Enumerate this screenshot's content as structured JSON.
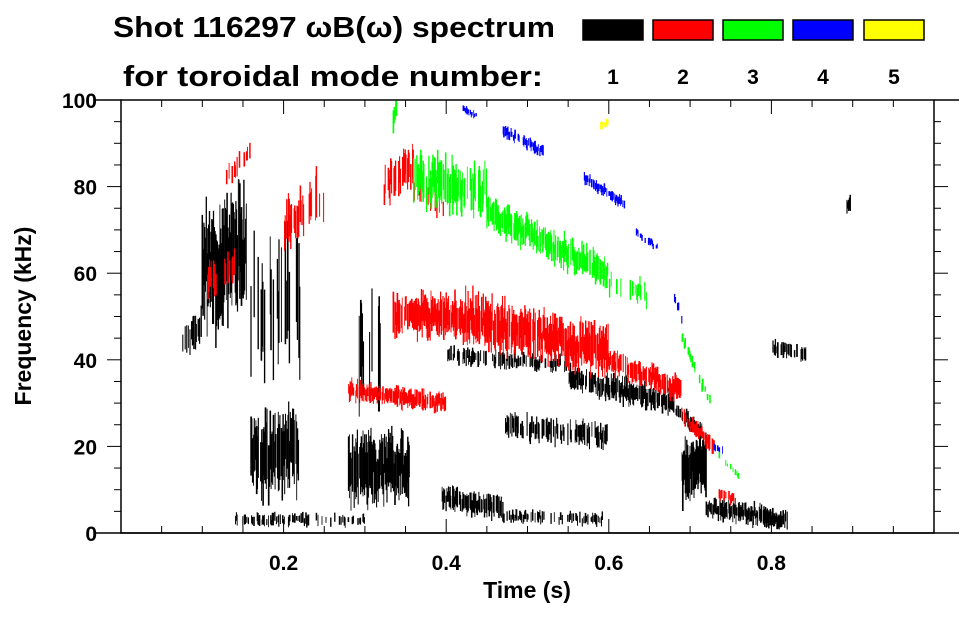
{
  "chart_data": {
    "type": "heatmap",
    "title": "Shot 116297 ωB(ω) spectrum",
    "legend_caption": "for toroidal mode number:",
    "xlabel": "Time (s)",
    "ylabel": "Frequency (kHz)",
    "xlim": [
      0,
      1.0
    ],
    "ylim": [
      0,
      100
    ],
    "xticks": [
      0.2,
      0.4,
      0.6,
      0.8
    ],
    "xtick_labels": [
      "0.2",
      "0.4",
      "0.6",
      "0.8"
    ],
    "yticks": [
      0,
      20,
      40,
      60,
      80,
      100
    ],
    "ytick_labels": [
      "0",
      "20",
      "40",
      "60",
      "80",
      "100"
    ],
    "legend_placement": "top-right",
    "band_format": "[t_start_s, t_end_s, f_center_start_kHz, f_center_end_kHz, f_halfwidth_kHz, density]",
    "series": [
      {
        "name": "1",
        "color": "#000000",
        "bands": [
          [
            0.075,
            0.1,
            44,
            48,
            4,
            0.5
          ],
          [
            0.1,
            0.155,
            60,
            66,
            15,
            1.0
          ],
          [
            0.155,
            0.22,
            52,
            55,
            16,
            0.35
          ],
          [
            0.16,
            0.22,
            18,
            18,
            10,
            0.9
          ],
          [
            0.28,
            0.355,
            15,
            15,
            8,
            0.95
          ],
          [
            0.29,
            0.32,
            42,
            42,
            14,
            0.3
          ],
          [
            0.395,
            0.47,
            8,
            6,
            3,
            0.8
          ],
          [
            0.47,
            0.6,
            4,
            3,
            1.5,
            0.5
          ],
          [
            0.4,
            0.55,
            41,
            39,
            2,
            0.5
          ],
          [
            0.55,
            0.68,
            36,
            30,
            3,
            0.8
          ],
          [
            0.68,
            0.72,
            29,
            22,
            2,
            0.7
          ],
          [
            0.47,
            0.6,
            25,
            22,
            3,
            0.6
          ],
          [
            0.69,
            0.72,
            15,
            15,
            8,
            1.0
          ],
          [
            0.72,
            0.82,
            6,
            3,
            2.5,
            0.9
          ],
          [
            0.8,
            0.845,
            43,
            41,
            2,
            0.6
          ],
          [
            0.14,
            0.3,
            3,
            3,
            1.5,
            0.3
          ],
          [
            0.893,
            0.897,
            75,
            76,
            2,
            0.8
          ]
        ]
      },
      {
        "name": "2",
        "color": "#ff0000",
        "bands": [
          [
            0.105,
            0.14,
            58,
            62,
            4,
            0.4
          ],
          [
            0.13,
            0.16,
            82,
            88,
            3,
            0.4
          ],
          [
            0.2,
            0.25,
            70,
            78,
            7,
            0.4
          ],
          [
            0.28,
            0.4,
            33,
            30,
            2.5,
            0.9
          ],
          [
            0.32,
            0.36,
            80,
            85,
            5,
            0.6
          ],
          [
            0.36,
            0.4,
            80,
            74,
            3,
            0.4
          ],
          [
            0.335,
            0.42,
            50,
            50,
            5,
            0.9
          ],
          [
            0.42,
            0.6,
            50,
            42,
            6,
            0.95
          ],
          [
            0.6,
            0.69,
            40,
            33,
            3,
            0.85
          ],
          [
            0.69,
            0.73,
            27,
            20,
            2,
            0.8
          ],
          [
            0.735,
            0.755,
            9,
            8,
            1.5,
            0.6
          ]
        ]
      },
      {
        "name": "3",
        "color": "#00ff00",
        "bands": [
          [
            0.335,
            0.34,
            95,
            99,
            3,
            0.8
          ],
          [
            0.36,
            0.45,
            82,
            79,
            6,
            0.7
          ],
          [
            0.45,
            0.6,
            74,
            60,
            4,
            0.75
          ],
          [
            0.6,
            0.65,
            57,
            55,
            3,
            0.3
          ],
          [
            0.69,
            0.725,
            45,
            30,
            1.5,
            0.5
          ],
          [
            0.735,
            0.76,
            18,
            13,
            1,
            0.4
          ]
        ]
      },
      {
        "name": "4",
        "color": "#0000ff",
        "bands": [
          [
            0.42,
            0.44,
            98,
            96,
            1,
            0.5
          ],
          [
            0.47,
            0.52,
            93,
            88,
            1.5,
            0.8
          ],
          [
            0.57,
            0.62,
            82,
            76,
            1.5,
            0.8
          ],
          [
            0.63,
            0.66,
            70,
            66,
            1,
            0.5
          ],
          [
            0.68,
            0.69,
            55,
            50,
            1.5,
            0.5
          ],
          [
            0.73,
            0.74,
            20,
            19,
            1,
            0.5
          ]
        ]
      },
      {
        "name": "5",
        "color": "#ffff00",
        "bands": [
          [
            0.59,
            0.6,
            94,
            95,
            1,
            0.8
          ]
        ]
      }
    ]
  }
}
